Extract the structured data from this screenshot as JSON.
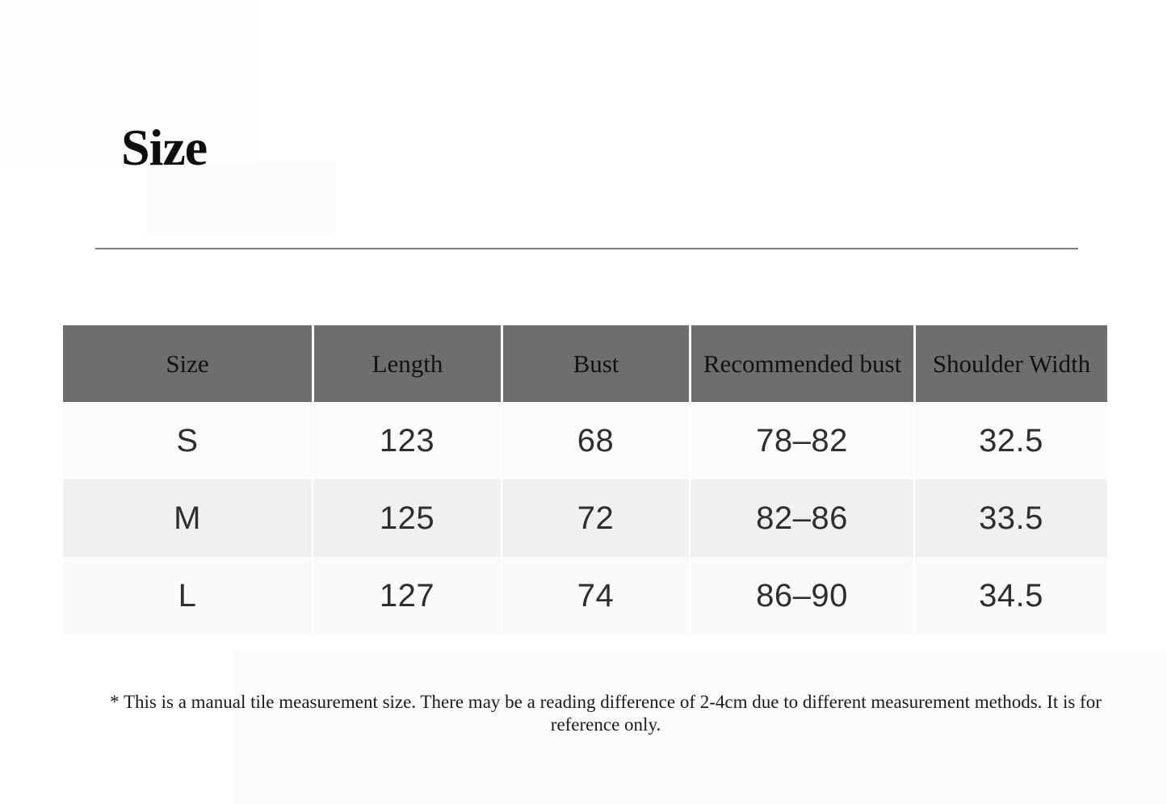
{
  "page": {
    "title": "Size",
    "footnote": "* This is a manual tile measurement size. There may be a reading difference of 2-4cm due to different measurement methods. It is for reference only."
  },
  "table": {
    "headers": [
      "Size",
      "Length",
      "Bust",
      "Recommended bust",
      "Shoulder Width"
    ],
    "rows": [
      [
        "S",
        "123",
        "68",
        "78–82",
        "32.5"
      ],
      [
        "M",
        "125",
        "72",
        "82–86",
        "33.5"
      ],
      [
        "L",
        "127",
        "74",
        "86–90",
        "34.5"
      ]
    ]
  },
  "chart_data": {
    "type": "table",
    "title": "Size",
    "columns": [
      "Size",
      "Length",
      "Bust",
      "Recommended bust",
      "Shoulder Width"
    ],
    "rows": [
      [
        "S",
        123,
        68,
        "78–82",
        32.5
      ],
      [
        "M",
        125,
        72,
        "82–86",
        33.5
      ],
      [
        "L",
        127,
        74,
        "86–90",
        34.5
      ]
    ],
    "note": "* This is a manual tile measurement size. There may be a reading difference of 2-4cm due to different measurement methods. It is for reference only.",
    "layout": {
      "header_background": "#6e6e6e",
      "striped_rows": true,
      "grid": "off"
    }
  },
  "colors": {
    "header_bg": "#6e6e6e",
    "row_light": "#fbfbfb",
    "row_striped": "#f0f0f0",
    "divider": "#7d7d7d",
    "header_text": "#121212",
    "body_text": "#2e2e2e"
  }
}
